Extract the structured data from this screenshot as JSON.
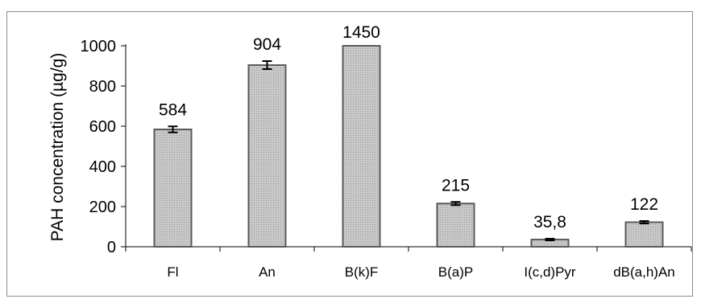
{
  "chart_data": {
    "type": "bar",
    "title": "",
    "xlabel": "",
    "ylabel": "PAH concentration (µg/g)",
    "ylim": [
      0,
      1000
    ],
    "yticks": [
      0,
      200,
      400,
      600,
      800,
      1000
    ],
    "grid": false,
    "categories": [
      "Fl",
      "An",
      "B(k)F",
      "B(a)P",
      "I(c,d)Pyr",
      "dB(a,h)An"
    ],
    "values": [
      584,
      904,
      1450,
      215,
      35.8,
      122
    ],
    "value_labels": [
      "584",
      "904",
      "1450",
      "215",
      "35,8",
      "122"
    ],
    "error": [
      15,
      20,
      null,
      8,
      4,
      6
    ],
    "bar_color": "#c8c8c8",
    "bar_edge_color": "#5a5a5a"
  }
}
